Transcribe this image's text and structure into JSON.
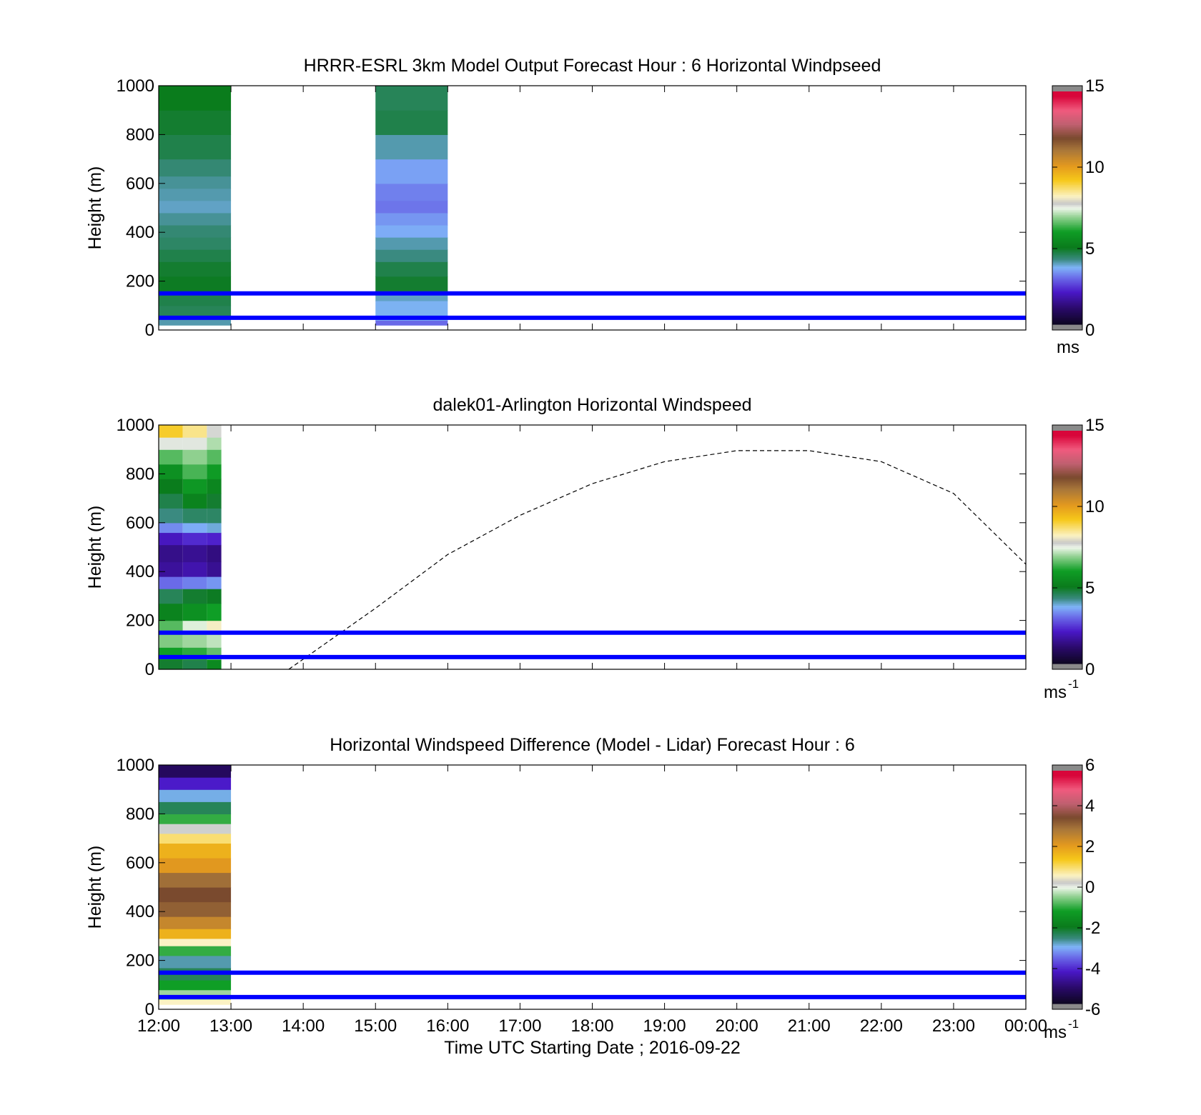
{
  "chart_data": [
    {
      "type": "heatmap",
      "title": "HRRR-ESRL 3km Model Output   Forecast Hour : 6 Horizontal Windpseed",
      "ylabel": "Height (m)",
      "xlabel": "",
      "ylim": [
        0,
        1000
      ],
      "yticks": [
        "0",
        "200",
        "400",
        "600",
        "800",
        "1000"
      ],
      "x_categories": [
        "12:00",
        "13:00",
        "14:00",
        "15:00",
        "16:00",
        "17:00",
        "18:00",
        "19:00",
        "20:00",
        "21:00",
        "22:00",
        "23:00",
        "00:00"
      ],
      "colorbar": {
        "min": 0,
        "max": 15,
        "ticks": [
          "0",
          "5",
          "10",
          "15"
        ],
        "unit": "ms",
        "unit_sup": ""
      },
      "reference_lines_m": [
        150,
        50
      ],
      "reference_line_color": "#0000ff",
      "columns": [
        {
          "time_start": "12:00",
          "time_end": "13:00",
          "height_from": 20,
          "height_to": 1000,
          "cells": [
            {
              "h0": 20,
              "h1": 60,
              "v": 4.0
            },
            {
              "h0": 60,
              "h1": 100,
              "v": 4.5
            },
            {
              "h0": 100,
              "h1": 160,
              "v": 4.6
            },
            {
              "h0": 160,
              "h1": 220,
              "v": 4.9
            },
            {
              "h0": 220,
              "h1": 280,
              "v": 4.8
            },
            {
              "h0": 280,
              "h1": 330,
              "v": 4.6
            },
            {
              "h0": 330,
              "h1": 380,
              "v": 4.4
            },
            {
              "h0": 380,
              "h1": 430,
              "v": 4.3
            },
            {
              "h0": 430,
              "h1": 480,
              "v": 4.1
            },
            {
              "h0": 480,
              "h1": 530,
              "v": 3.9
            },
            {
              "h0": 530,
              "h1": 580,
              "v": 4.0
            },
            {
              "h0": 580,
              "h1": 630,
              "v": 4.1
            },
            {
              "h0": 630,
              "h1": 700,
              "v": 4.3
            },
            {
              "h0": 700,
              "h1": 800,
              "v": 4.6
            },
            {
              "h0": 800,
              "h1": 900,
              "v": 4.8
            },
            {
              "h0": 900,
              "h1": 1000,
              "v": 5.0
            }
          ]
        },
        {
          "time_start": "15:00",
          "time_end": "16:00",
          "height_from": 20,
          "height_to": 1000,
          "cells": [
            {
              "h0": 20,
              "h1": 40,
              "v": 3.0
            },
            {
              "h0": 40,
              "h1": 120,
              "v": 3.7
            },
            {
              "h0": 120,
              "h1": 160,
              "v": 3.9
            },
            {
              "h0": 160,
              "h1": 220,
              "v": 4.8
            },
            {
              "h0": 220,
              "h1": 280,
              "v": 4.6
            },
            {
              "h0": 280,
              "h1": 330,
              "v": 4.2
            },
            {
              "h0": 330,
              "h1": 380,
              "v": 4.0
            },
            {
              "h0": 380,
              "h1": 430,
              "v": 3.6
            },
            {
              "h0": 430,
              "h1": 480,
              "v": 3.4
            },
            {
              "h0": 480,
              "h1": 530,
              "v": 3.1
            },
            {
              "h0": 530,
              "h1": 600,
              "v": 3.2
            },
            {
              "h0": 600,
              "h1": 700,
              "v": 3.5
            },
            {
              "h0": 700,
              "h1": 800,
              "v": 4.0
            },
            {
              "h0": 800,
              "h1": 900,
              "v": 4.6
            },
            {
              "h0": 900,
              "h1": 1000,
              "v": 4.5
            }
          ]
        }
      ]
    },
    {
      "type": "heatmap",
      "title": "dalek01-Arlington  Horizontal Windspeed",
      "ylabel": "Height (m)",
      "xlabel": "",
      "ylim": [
        0,
        1000
      ],
      "yticks": [
        "0",
        "200",
        "400",
        "600",
        "800",
        "1000"
      ],
      "x_categories": [
        "12:00",
        "13:00",
        "14:00",
        "15:00",
        "16:00",
        "17:00",
        "18:00",
        "19:00",
        "20:00",
        "21:00",
        "22:00",
        "23:00",
        "00:00"
      ],
      "colorbar": {
        "min": 0,
        "max": 15,
        "ticks": [
          "0",
          "5",
          "10",
          "15"
        ],
        "unit": "ms",
        "unit_sup": "-1"
      },
      "reference_lines_m": [
        150,
        50
      ],
      "reference_line_color": "#0000ff",
      "dashed_curve": {
        "x_hours_after_start": [
          1.8,
          3,
          4,
          5,
          6,
          7,
          8,
          9,
          10,
          11,
          12
        ],
        "height_m": [
          0,
          250,
          470,
          630,
          760,
          850,
          895,
          895,
          850,
          720,
          430
        ]
      },
      "columns": [
        {
          "time_start": "12:00",
          "time_end": "12:20",
          "height_from": 0,
          "height_to": 1000,
          "cells": [
            {
              "h0": 0,
              "h1": 40,
              "v": 4.8
            },
            {
              "h0": 40,
              "h1": 90,
              "v": 6.0
            },
            {
              "h0": 90,
              "h1": 150,
              "v": 6.8
            },
            {
              "h0": 150,
              "h1": 200,
              "v": 6.5
            },
            {
              "h0": 200,
              "h1": 270,
              "v": 5.2
            },
            {
              "h0": 270,
              "h1": 330,
              "v": 4.5
            },
            {
              "h0": 330,
              "h1": 380,
              "v": 3.0
            },
            {
              "h0": 380,
              "h1": 440,
              "v": 1.6
            },
            {
              "h0": 440,
              "h1": 510,
              "v": 1.4
            },
            {
              "h0": 510,
              "h1": 560,
              "v": 2.0
            },
            {
              "h0": 560,
              "h1": 600,
              "v": 3.3
            },
            {
              "h0": 600,
              "h1": 660,
              "v": 4.2
            },
            {
              "h0": 660,
              "h1": 720,
              "v": 4.6
            },
            {
              "h0": 720,
              "h1": 780,
              "v": 5.0
            },
            {
              "h0": 780,
              "h1": 840,
              "v": 5.6
            },
            {
              "h0": 840,
              "h1": 900,
              "v": 6.5
            },
            {
              "h0": 900,
              "h1": 950,
              "v": 7.6
            },
            {
              "h0": 950,
              "h1": 1000,
              "v": 9.2
            }
          ]
        },
        {
          "time_start": "12:20",
          "time_end": "12:40",
          "height_from": 0,
          "height_to": 1000,
          "cells": [
            {
              "h0": 0,
              "h1": 40,
              "v": 4.6
            },
            {
              "h0": 40,
              "h1": 90,
              "v": 6.2
            },
            {
              "h0": 90,
              "h1": 150,
              "v": 7.0
            },
            {
              "h0": 150,
              "h1": 200,
              "v": 7.4
            },
            {
              "h0": 200,
              "h1": 270,
              "v": 5.6
            },
            {
              "h0": 270,
              "h1": 330,
              "v": 4.8
            },
            {
              "h0": 330,
              "h1": 380,
              "v": 3.2
            },
            {
              "h0": 380,
              "h1": 440,
              "v": 1.8
            },
            {
              "h0": 440,
              "h1": 510,
              "v": 1.5
            },
            {
              "h0": 510,
              "h1": 560,
              "v": 2.3
            },
            {
              "h0": 560,
              "h1": 600,
              "v": 3.6
            },
            {
              "h0": 600,
              "h1": 660,
              "v": 4.4
            },
            {
              "h0": 660,
              "h1": 720,
              "v": 5.2
            },
            {
              "h0": 720,
              "h1": 780,
              "v": 5.8
            },
            {
              "h0": 780,
              "h1": 840,
              "v": 6.4
            },
            {
              "h0": 840,
              "h1": 900,
              "v": 6.9
            },
            {
              "h0": 900,
              "h1": 950,
              "v": 7.6
            },
            {
              "h0": 950,
              "h1": 1000,
              "v": 8.6
            }
          ]
        },
        {
          "time_start": "12:40",
          "time_end": "12:52",
          "height_from": 0,
          "height_to": 1000,
          "cells": [
            {
              "h0": 0,
              "h1": 40,
              "v": 5.4
            },
            {
              "h0": 40,
              "h1": 90,
              "v": 6.6
            },
            {
              "h0": 90,
              "h1": 150,
              "v": 7.2
            },
            {
              "h0": 150,
              "h1": 200,
              "v": 8.2
            },
            {
              "h0": 200,
              "h1": 270,
              "v": 6.0
            },
            {
              "h0": 270,
              "h1": 330,
              "v": 4.9
            },
            {
              "h0": 330,
              "h1": 380,
              "v": 3.4
            },
            {
              "h0": 380,
              "h1": 440,
              "v": 1.5
            },
            {
              "h0": 440,
              "h1": 510,
              "v": 1.3
            },
            {
              "h0": 510,
              "h1": 560,
              "v": 2.2
            },
            {
              "h0": 560,
              "h1": 600,
              "v": 3.8
            },
            {
              "h0": 600,
              "h1": 660,
              "v": 4.4
            },
            {
              "h0": 660,
              "h1": 720,
              "v": 4.8
            },
            {
              "h0": 720,
              "h1": 780,
              "v": 5.3
            },
            {
              "h0": 780,
              "h1": 840,
              "v": 5.9
            },
            {
              "h0": 840,
              "h1": 900,
              "v": 6.5
            },
            {
              "h0": 900,
              "h1": 950,
              "v": 7.1
            },
            {
              "h0": 950,
              "h1": 1000,
              "v": 7.7
            }
          ]
        }
      ]
    },
    {
      "type": "heatmap",
      "title": "Horizontal Windspeed Difference (Model - Lidar) Forecast Hour : 6",
      "ylabel": "Height (m)",
      "xlabel": "Time UTC  Starting Date ; 2016-09-22",
      "ylim": [
        0,
        1000
      ],
      "yticks": [
        "0",
        "200",
        "400",
        "600",
        "800",
        "1000"
      ],
      "x_categories": [
        "12:00",
        "13:00",
        "14:00",
        "15:00",
        "16:00",
        "17:00",
        "18:00",
        "19:00",
        "20:00",
        "21:00",
        "22:00",
        "23:00",
        "00:00"
      ],
      "colorbar": {
        "min": -6,
        "max": 6,
        "ticks": [
          "-6",
          "-4",
          "-2",
          "0",
          "2",
          "4",
          "6"
        ],
        "unit": "ms",
        "unit_sup": "-1"
      },
      "reference_lines_m": [
        150,
        50
      ],
      "reference_line_color": "#0000ff",
      "columns": [
        {
          "time_start": "12:00",
          "time_end": "13:00",
          "height_from": 20,
          "height_to": 1000,
          "cells": [
            {
              "h0": 20,
              "h1": 40,
              "v": 0.6
            },
            {
              "h0": 40,
              "h1": 80,
              "v": -0.4
            },
            {
              "h0": 80,
              "h1": 120,
              "v": -1.2
            },
            {
              "h0": 120,
              "h1": 170,
              "v": -2.4
            },
            {
              "h0": 170,
              "h1": 220,
              "v": -2.8
            },
            {
              "h0": 220,
              "h1": 260,
              "v": -1.0
            },
            {
              "h0": 260,
              "h1": 290,
              "v": 0.6
            },
            {
              "h0": 290,
              "h1": 330,
              "v": 1.8
            },
            {
              "h0": 330,
              "h1": 380,
              "v": 2.6
            },
            {
              "h0": 380,
              "h1": 440,
              "v": 3.3
            },
            {
              "h0": 440,
              "h1": 500,
              "v": 3.6
            },
            {
              "h0": 500,
              "h1": 560,
              "v": 3.1
            },
            {
              "h0": 560,
              "h1": 620,
              "v": 2.2
            },
            {
              "h0": 620,
              "h1": 680,
              "v": 1.8
            },
            {
              "h0": 680,
              "h1": 720,
              "v": 1.0
            },
            {
              "h0": 720,
              "h1": 760,
              "v": 0.2
            },
            {
              "h0": 760,
              "h1": 800,
              "v": -1.0
            },
            {
              "h0": 800,
              "h1": 850,
              "v": -2.4
            },
            {
              "h0": 850,
              "h1": 900,
              "v": -3.0
            },
            {
              "h0": 900,
              "h1": 950,
              "v": -4.3
            },
            {
              "h0": 950,
              "h1": 1000,
              "v": -5.3
            }
          ]
        }
      ]
    }
  ]
}
